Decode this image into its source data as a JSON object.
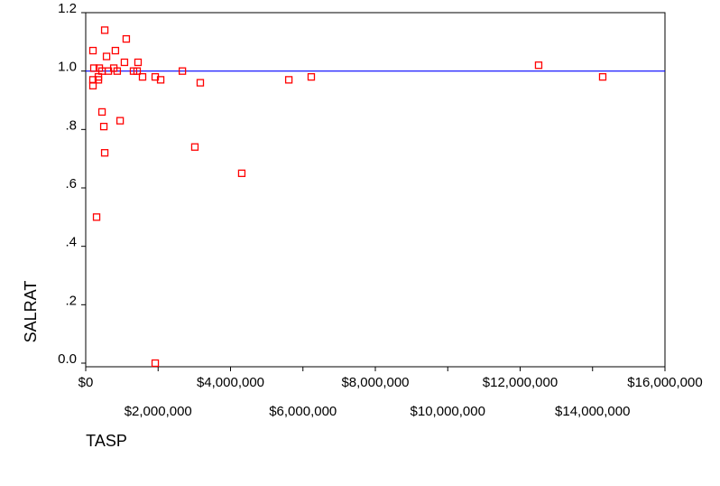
{
  "chart_data": {
    "type": "scatter",
    "x_label": "TASP",
    "y_label": "SALRAT",
    "xlim": [
      0,
      16000000
    ],
    "ylim": [
      0,
      1.2
    ],
    "xticks": [
      {
        "value": 0,
        "label": "$0"
      },
      {
        "value": 2000000,
        "label": "$2,000,000"
      },
      {
        "value": 4000000,
        "label": "$4,000,000"
      },
      {
        "value": 6000000,
        "label": "$6,000,000"
      },
      {
        "value": 8000000,
        "label": "$8,000,000"
      },
      {
        "value": 10000000,
        "label": "$10,000,000"
      },
      {
        "value": 12000000,
        "label": "$12,000,000"
      },
      {
        "value": 14000000,
        "label": "$14,000,000"
      },
      {
        "value": 16000000,
        "label": "$16,000,000"
      }
    ],
    "yticks": [
      {
        "value": 0,
        "label": "0.0"
      },
      {
        "value": 0.2,
        "label": ".2"
      },
      {
        "value": 0.4,
        "label": ".4"
      },
      {
        "value": 0.6,
        "label": ".6"
      },
      {
        "value": 0.8,
        "label": ".8"
      },
      {
        "value": 1,
        "label": "1.0"
      },
      1.2
    ],
    "reference_line": {
      "y": 1,
      "color": "#0000ff"
    },
    "series": [
      {
        "color": "#ff0000",
        "x": [
          200000,
          225000,
          375000,
          525000,
          575000,
          820000,
          1120000,
          1070000,
          1445000,
          625000,
          870000,
          775000,
          450000,
          350000,
          1320000,
          1420000,
          1570000,
          1920000,
          2070000,
          2670000,
          3165000,
          200000,
          200000,
          350000,
          450000,
          500000,
          950000,
          525000,
          3015000,
          4310000,
          300000,
          1920000,
          5610000,
          6230000,
          12510000,
          14280000
        ],
        "values": [
          1.07,
          1.01,
          1.01,
          1.14,
          1.05,
          1.07,
          1.11,
          1.03,
          1.03,
          1.0,
          1.0,
          1.01,
          1.0,
          0.98,
          1.0,
          1.0,
          0.98,
          0.98,
          0.97,
          1.0,
          0.96,
          0.97,
          0.95,
          0.97,
          0.86,
          0.81,
          0.83,
          0.72,
          0.74,
          0.65,
          0.5,
          0.0,
          0.97,
          0.98,
          1.02,
          0.98
        ]
      }
    ]
  }
}
